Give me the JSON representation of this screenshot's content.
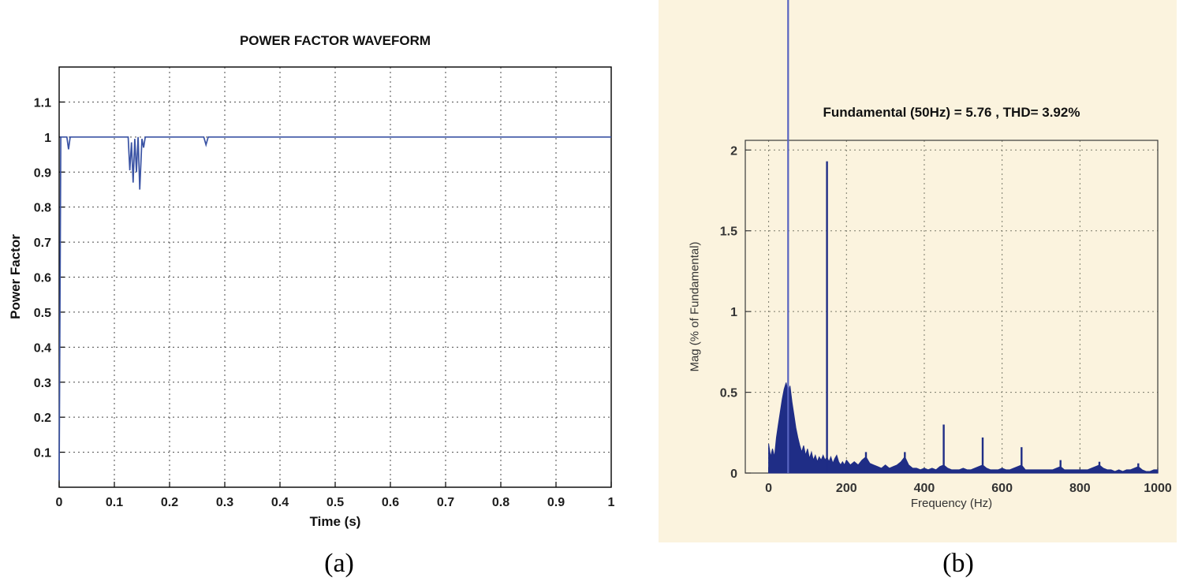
{
  "figure": {
    "sublabel_a": "(a)",
    "sublabel_b": "(b)"
  },
  "chart_data": [
    {
      "type": "line",
      "name": "power-factor-waveform",
      "title": "POWER FACTOR WAVEFORM",
      "xlabel": "Time (s)",
      "ylabel": "Power Factor",
      "xlim": [
        0,
        1
      ],
      "ylim": [
        0,
        1.2
      ],
      "xticks": [
        0,
        0.1,
        0.2,
        0.3,
        0.4,
        0.5,
        0.6,
        0.7,
        0.8,
        0.9,
        1
      ],
      "xtick_labels": [
        "0",
        "0.1",
        "0.2",
        "0.3",
        "0.4",
        "0.5",
        "0.6",
        "0.7",
        "0.8",
        "0.9",
        "1"
      ],
      "yticks": [
        0.1,
        0.2,
        0.3,
        0.4,
        0.5,
        0.6,
        0.7,
        0.8,
        0.9,
        1.0,
        1.1
      ],
      "ytick_labels": [
        "0.1",
        "0.2",
        "0.3",
        "0.4",
        "0.5",
        "0.6",
        "0.7",
        "0.8",
        "0.9",
        "1",
        "1.1"
      ],
      "grid": true,
      "legend": null,
      "line_color": "#3a53a4",
      "points": [
        [
          0,
          0.02
        ],
        [
          0.003,
          1.0
        ],
        [
          0.014,
          1.0
        ],
        [
          0.017,
          0.965
        ],
        [
          0.02,
          1.0
        ],
        [
          0.125,
          1.0
        ],
        [
          0.128,
          0.905
        ],
        [
          0.131,
          0.985
        ],
        [
          0.134,
          0.87
        ],
        [
          0.137,
          0.995
        ],
        [
          0.14,
          0.9
        ],
        [
          0.143,
          1.0
        ],
        [
          0.146,
          0.85
        ],
        [
          0.15,
          0.995
        ],
        [
          0.153,
          0.97
        ],
        [
          0.156,
          1.0
        ],
        [
          0.262,
          1.0
        ],
        [
          0.266,
          0.978
        ],
        [
          0.27,
          1.0
        ],
        [
          1.0,
          1.0
        ]
      ]
    },
    {
      "type": "bar",
      "name": "fft-harmonic-spectrum",
      "title": "Fundamental (50Hz) = 5.76 , THD= 3.92%",
      "xlabel": "Frequency (Hz)",
      "ylabel": "Mag (% of Fundamental)",
      "xlim": [
        -60,
        1000
      ],
      "ylim": [
        0,
        2.06
      ],
      "xticks": [
        0,
        200,
        400,
        600,
        800,
        1000
      ],
      "xtick_labels": [
        "0",
        "200",
        "400",
        "600",
        "800",
        "1000"
      ],
      "yticks": [
        0,
        0.5,
        1,
        1.5,
        2
      ],
      "ytick_labels": [
        "0",
        "0.5",
        "1",
        "1.5",
        "2"
      ],
      "grid": true,
      "panel_bg": "#fbf3de",
      "bar_color": "#1f2d86",
      "fundamental": {
        "freq_hz": 50,
        "value": 5.76,
        "thd": "3.92%",
        "line_color": "#5864c0"
      },
      "harmonics_spikes": [
        [
          150,
          1.93
        ],
        [
          250,
          0.13
        ],
        [
          350,
          0.13
        ],
        [
          450,
          0.3
        ],
        [
          550,
          0.22
        ],
        [
          650,
          0.16
        ],
        [
          750,
          0.08
        ],
        [
          850,
          0.07
        ],
        [
          950,
          0.06
        ]
      ],
      "continuum": [
        [
          0,
          0.18
        ],
        [
          5,
          0.1
        ],
        [
          10,
          0.15
        ],
        [
          15,
          0.1
        ],
        [
          20,
          0.22
        ],
        [
          25,
          0.3
        ],
        [
          30,
          0.38
        ],
        [
          35,
          0.46
        ],
        [
          40,
          0.52
        ],
        [
          45,
          0.56
        ],
        [
          50,
          0.5
        ],
        [
          55,
          0.54
        ],
        [
          60,
          0.44
        ],
        [
          65,
          0.36
        ],
        [
          70,
          0.28
        ],
        [
          75,
          0.22
        ],
        [
          80,
          0.17
        ],
        [
          85,
          0.13
        ],
        [
          90,
          0.17
        ],
        [
          95,
          0.11
        ],
        [
          100,
          0.15
        ],
        [
          105,
          0.09
        ],
        [
          110,
          0.13
        ],
        [
          115,
          0.08
        ],
        [
          120,
          0.11
        ],
        [
          125,
          0.07
        ],
        [
          130,
          0.1
        ],
        [
          135,
          0.08
        ],
        [
          140,
          0.11
        ],
        [
          145,
          0.08
        ],
        [
          150,
          0.1
        ],
        [
          155,
          0.07
        ],
        [
          160,
          0.1
        ],
        [
          165,
          0.06
        ],
        [
          170,
          0.09
        ],
        [
          175,
          0.11
        ],
        [
          180,
          0.07
        ],
        [
          185,
          0.05
        ],
        [
          190,
          0.07
        ],
        [
          195,
          0.05
        ],
        [
          200,
          0.08
        ],
        [
          210,
          0.05
        ],
        [
          220,
          0.07
        ],
        [
          230,
          0.05
        ],
        [
          240,
          0.08
        ],
        [
          250,
          0.1
        ],
        [
          260,
          0.06
        ],
        [
          270,
          0.05
        ],
        [
          280,
          0.04
        ],
        [
          290,
          0.03
        ],
        [
          300,
          0.05
        ],
        [
          310,
          0.03
        ],
        [
          320,
          0.04
        ],
        [
          330,
          0.05
        ],
        [
          340,
          0.07
        ],
        [
          350,
          0.1
        ],
        [
          360,
          0.05
        ],
        [
          370,
          0.03
        ],
        [
          380,
          0.03
        ],
        [
          390,
          0.02
        ],
        [
          400,
          0.03
        ],
        [
          410,
          0.02
        ],
        [
          420,
          0.03
        ],
        [
          430,
          0.02
        ],
        [
          440,
          0.04
        ],
        [
          450,
          0.05
        ],
        [
          460,
          0.03
        ],
        [
          470,
          0.02
        ],
        [
          480,
          0.02
        ],
        [
          490,
          0.02
        ],
        [
          500,
          0.03
        ],
        [
          510,
          0.02
        ],
        [
          520,
          0.02
        ],
        [
          530,
          0.03
        ],
        [
          540,
          0.04
        ],
        [
          550,
          0.05
        ],
        [
          560,
          0.03
        ],
        [
          570,
          0.02
        ],
        [
          580,
          0.02
        ],
        [
          590,
          0.02
        ],
        [
          600,
          0.03
        ],
        [
          610,
          0.02
        ],
        [
          620,
          0.02
        ],
        [
          630,
          0.03
        ],
        [
          640,
          0.04
        ],
        [
          650,
          0.05
        ],
        [
          660,
          0.02
        ],
        [
          670,
          0.02
        ],
        [
          680,
          0.02
        ],
        [
          690,
          0.02
        ],
        [
          700,
          0.02
        ],
        [
          710,
          0.02
        ],
        [
          720,
          0.02
        ],
        [
          730,
          0.02
        ],
        [
          740,
          0.03
        ],
        [
          750,
          0.04
        ],
        [
          760,
          0.02
        ],
        [
          770,
          0.02
        ],
        [
          780,
          0.02
        ],
        [
          790,
          0.02
        ],
        [
          800,
          0.02
        ],
        [
          810,
          0.02
        ],
        [
          820,
          0.02
        ],
        [
          830,
          0.03
        ],
        [
          840,
          0.04
        ],
        [
          850,
          0.05
        ],
        [
          860,
          0.03
        ],
        [
          870,
          0.02
        ],
        [
          880,
          0.02
        ],
        [
          890,
          0.01
        ],
        [
          900,
          0.02
        ],
        [
          910,
          0.01
        ],
        [
          920,
          0.02
        ],
        [
          930,
          0.02
        ],
        [
          940,
          0.03
        ],
        [
          950,
          0.04
        ],
        [
          960,
          0.02
        ],
        [
          970,
          0.01
        ],
        [
          980,
          0.01
        ],
        [
          990,
          0.02
        ],
        [
          1000,
          0.02
        ]
      ]
    }
  ]
}
